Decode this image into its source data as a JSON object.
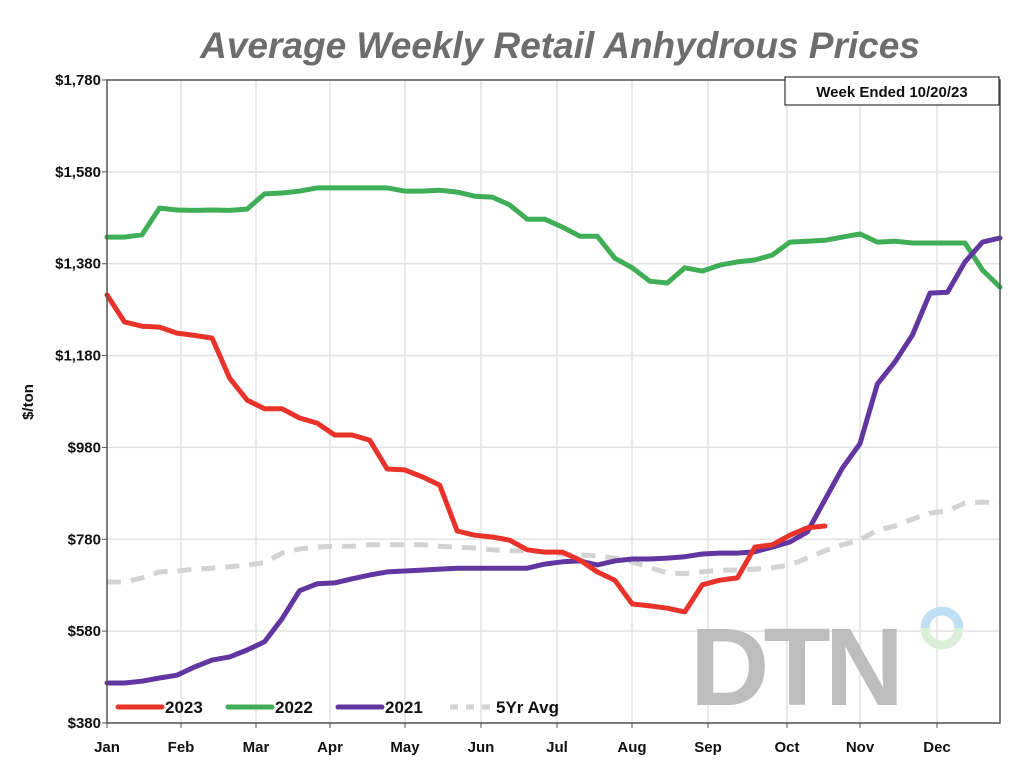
{
  "chart_data": {
    "type": "line",
    "title": "Average Weekly Retail Anhydrous Prices",
    "annotation": "Week Ended 10/20/23",
    "ylabel": "$/ton",
    "xlabel": "",
    "ylim": [
      380,
      1780
    ],
    "y_ticks": [
      "$1,780",
      "$1,580",
      "$1,380",
      "$1,180",
      "$980",
      "$780",
      "$580",
      "$380"
    ],
    "y_tick_values": [
      1780,
      1580,
      1380,
      1180,
      980,
      780,
      580,
      380
    ],
    "x_ticks": [
      "Jan",
      "Feb",
      "Mar",
      "Apr",
      "May",
      "Jun",
      "Jul",
      "Aug",
      "Sep",
      "Oct",
      "Nov",
      "Dec"
    ],
    "x_unit": "week of year",
    "grid": true,
    "legend_position": "bottom-left",
    "watermark": "DTN",
    "series": [
      {
        "name": "2023",
        "color": "#e8322a",
        "style": "solid",
        "values": [
          1312,
          1253,
          1244,
          1242,
          1229,
          1224,
          1218,
          1131,
          1083,
          1064,
          1064,
          1044,
          1033,
          1007,
          1007,
          996,
          933,
          931,
          916,
          898,
          798,
          789,
          785,
          778,
          757,
          752,
          752,
          735,
          709,
          691,
          639,
          635,
          630,
          622,
          681,
          691,
          696,
          763,
          768,
          789,
          805,
          809
        ]
      },
      {
        "name": "2022",
        "color": "#3fae56",
        "style": "solid",
        "values": [
          1438,
          1438,
          1443,
          1501,
          1497,
          1496,
          1497,
          1496,
          1499,
          1532,
          1534,
          1538,
          1545,
          1545,
          1545,
          1545,
          1545,
          1538,
          1538,
          1540,
          1536,
          1527,
          1525,
          1508,
          1477,
          1477,
          1460,
          1440,
          1440,
          1392,
          1371,
          1342,
          1338,
          1371,
          1364,
          1377,
          1384,
          1388,
          1399,
          1427,
          1429,
          1431,
          1438,
          1445,
          1427,
          1429,
          1425,
          1425,
          1425,
          1425,
          1366,
          1329
        ]
      },
      {
        "name": "2021",
        "color": "#6236a0",
        "style": "solid",
        "values": [
          467,
          467,
          471,
          478,
          484,
          502,
          517,
          524,
          539,
          557,
          607,
          668,
          683,
          685,
          694,
          702,
          709,
          711,
          713,
          715,
          717,
          717,
          717,
          717,
          717,
          726,
          731,
          733,
          724,
          733,
          737,
          737,
          739,
          742,
          748,
          750,
          750,
          753,
          763,
          774,
          796,
          866,
          935,
          988,
          1118,
          1166,
          1225,
          1316,
          1318,
          1384,
          1427,
          1436
        ]
      },
      {
        "name": "5Yr Avg",
        "color": "#d3d3d3",
        "style": "dashed",
        "values": [
          687,
          687,
          696,
          709,
          711,
          715,
          717,
          720,
          724,
          729,
          750,
          759,
          763,
          765,
          765,
          768,
          768,
          768,
          768,
          765,
          763,
          761,
          757,
          755,
          755,
          752,
          748,
          746,
          744,
          739,
          731,
          718,
          707,
          705,
          709,
          713,
          713,
          715,
          718,
          724,
          739,
          755,
          768,
          778,
          800,
          809,
          824,
          837,
          842,
          859,
          861,
          859
        ]
      }
    ]
  }
}
